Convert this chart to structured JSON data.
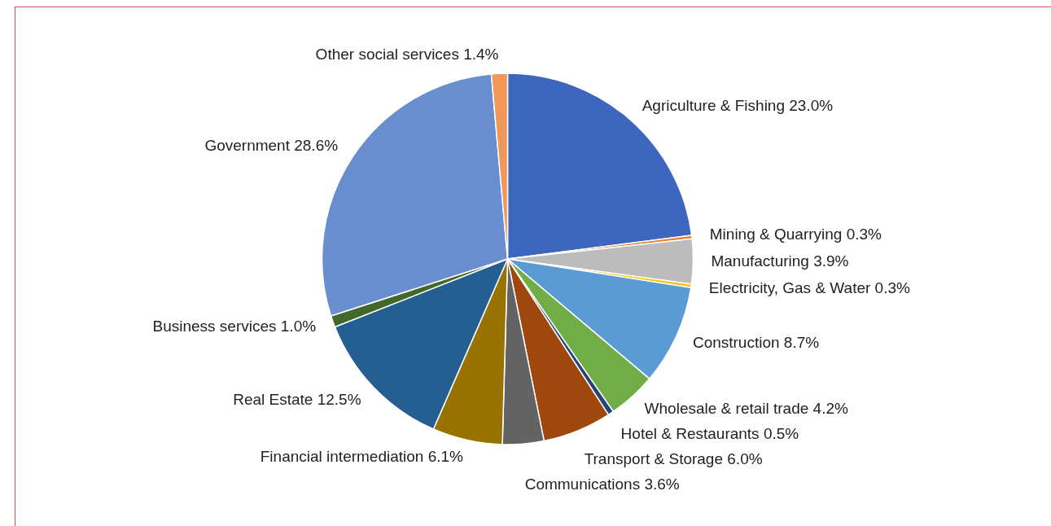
{
  "chart_data": {
    "type": "pie",
    "categories": [
      "Agriculture & Fishing",
      "Mining & Quarrying",
      "Manufacturing",
      "Electricity, Gas & Water",
      "Construction",
      "Wholesale & retail trade",
      "Hotel & Restaurants",
      "Transport & Storage",
      "Communications",
      "Financial intermediation",
      "Real Estate",
      "Business services",
      "Government",
      "Other social services"
    ],
    "values": [
      23.0,
      0.3,
      3.9,
      0.3,
      8.7,
      4.2,
      0.5,
      6.0,
      3.6,
      6.1,
      12.5,
      1.0,
      28.6,
      1.4
    ],
    "value_labels": [
      "23.0%",
      "0.3%",
      "3.9%",
      "0.3%",
      "8.7%",
      "4.2%",
      "0.5%",
      "6.0%",
      "3.6%",
      "6.1%",
      "12.5%",
      "1.0%",
      "28.6%",
      "1.4%"
    ],
    "colors": [
      "#3d67be",
      "#ed7d31",
      "#bcbcbc",
      "#ffc000",
      "#5b9bd5",
      "#70ad47",
      "#264478",
      "#9e480e",
      "#636363",
      "#997300",
      "#255e91",
      "#43682b",
      "#698ed0",
      "#f1975a"
    ]
  }
}
